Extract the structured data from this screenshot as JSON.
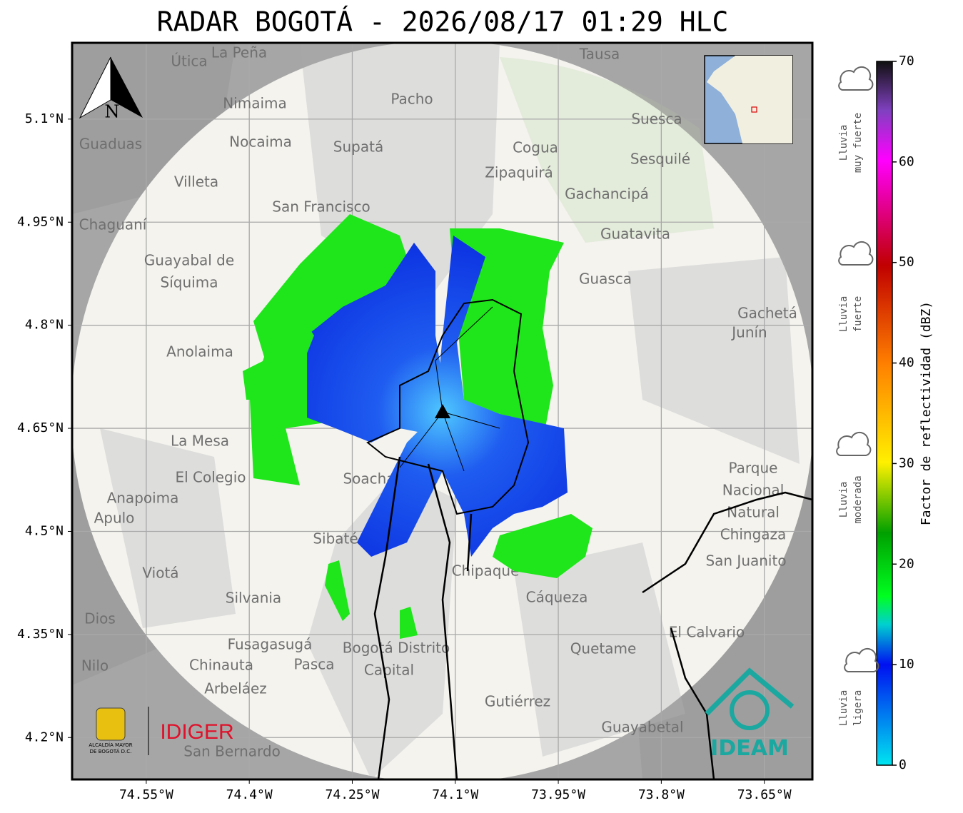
{
  "title": "RADAR BOGOTÁ - 2026/08/17 01:29 HLC",
  "map": {
    "xlim": [
      -74.658,
      -73.58
    ],
    "ylim": [
      4.139,
      5.211
    ],
    "xticks": [
      {
        "value": -74.55,
        "label": "74.55°W"
      },
      {
        "value": -74.4,
        "label": "74.4°W"
      },
      {
        "value": -74.25,
        "label": "74.25°W"
      },
      {
        "value": -74.1,
        "label": "74.1°W"
      },
      {
        "value": -73.95,
        "label": "73.95°W"
      },
      {
        "value": -73.8,
        "label": "73.8°W"
      },
      {
        "value": -73.65,
        "label": "73.65°W"
      }
    ],
    "yticks": [
      {
        "value": 4.2,
        "label": "4.2°N"
      },
      {
        "value": 4.35,
        "label": "4.35°N"
      },
      {
        "value": 4.5,
        "label": "4.5°N"
      },
      {
        "value": 4.65,
        "label": "4.65°N"
      },
      {
        "value": 4.8,
        "label": "4.8°N"
      },
      {
        "value": 4.95,
        "label": "4.95°N"
      },
      {
        "value": 5.1,
        "label": "5.1°N"
      }
    ],
    "grid": true,
    "north_label": "N",
    "places": [
      "La Peña",
      "Útica",
      "Tausa",
      "Pacho",
      "Nimaima",
      "Guaduas",
      "Nocaima",
      "Supatá",
      "Cogua",
      "Suesca",
      "Sesquilé",
      "Zipaquirá",
      "Villeta",
      "Gachancipá",
      "San Francisco",
      "Chaguaní",
      "Guatavita",
      "Guayabal de",
      "Síquima",
      "Guasca",
      "Anolaima",
      "Gachetá",
      "Junín",
      "La Mesa",
      "El Colegio",
      "Soacha",
      "Anapoima",
      "Apulo",
      "Parque",
      "Nacional",
      "Natural",
      "Chingaza",
      "Sibaté",
      "San Juanito",
      "Viotá",
      "Chipaque",
      "Silvania",
      "Cáqueza",
      "El Calvario",
      "Fusagasugá",
      "Bogotá Distrito",
      "Capital",
      "Quetame",
      "Chinauta",
      "Pasca",
      "Arbeláez",
      "Gutiérrez",
      "Guayabetal",
      "San Bernardo",
      "Nilo",
      "Dios"
    ],
    "logos": {
      "alcaldia": [
        "ALCALDÍA MAYOR",
        "DE BOGOTÁ D.C."
      ],
      "idiger": "IDIGER",
      "ideam": "IDEAM"
    }
  },
  "colorbar": {
    "label": "Factor de reflectividad (dBZ)",
    "lim": [
      0,
      70
    ],
    "ticks": [
      0,
      10,
      20,
      30,
      40,
      50,
      60,
      70
    ],
    "intensity_labels": [
      [
        "Lluvia",
        "muy fuerte"
      ],
      [
        "Lluvia",
        "fuerte"
      ],
      [
        "Lluvia",
        "moderada"
      ],
      [
        "Lluvia",
        "ligera"
      ]
    ]
  }
}
